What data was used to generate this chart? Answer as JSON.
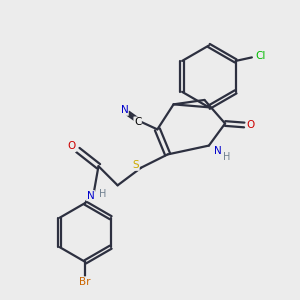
{
  "bg_color": "#ececec",
  "bond_color": "#2d3040",
  "bond_width": 1.6,
  "atom_colors": {
    "N": "#0000cc",
    "O": "#cc0000",
    "S": "#ccaa00",
    "Cl": "#00bb00",
    "Br": "#cc6600",
    "C": "#000000",
    "H": "#708090"
  },
  "font_size": 7.5
}
